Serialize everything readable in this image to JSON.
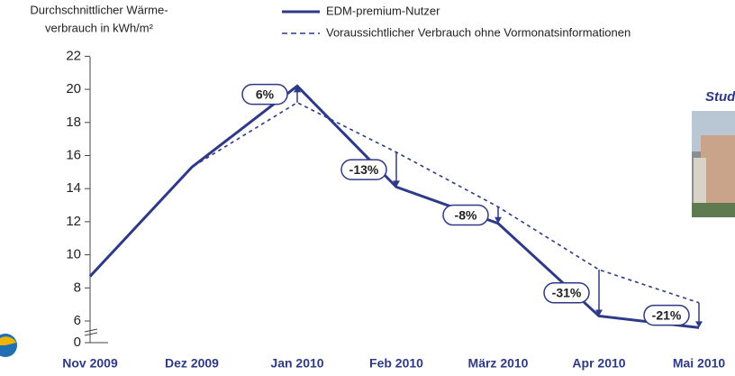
{
  "chart_data": {
    "type": "line",
    "y_axis_label": [
      "Durchschnittlicher Wärme-",
      "verbrauch in kWh/m²"
    ],
    "categories": [
      "Nov 2009",
      "Dez 2009",
      "Jan 2010",
      "Feb 2010",
      "März 2010",
      "Apr 2010",
      "Mai 2010"
    ],
    "series": [
      {
        "name": "EDM-premium-Nutzer",
        "color": "#2e3a87",
        "style": "solid",
        "values": [
          8.7,
          15.3,
          20.2,
          14.1,
          11.9,
          6.3,
          5.6
        ]
      },
      {
        "name": "Voraussichtlicher Verbrauch ohne Vormonatsinformationen",
        "color": "#2e3a87",
        "style": "dashed",
        "values": [
          8.7,
          15.3,
          19.2,
          16.2,
          12.9,
          9.1,
          7.1
        ]
      }
    ],
    "change_labels": [
      null,
      null,
      "6%",
      "-13%",
      "-8%",
      "-31%",
      "-21%"
    ],
    "ylim": [
      0,
      22
    ],
    "axis_break": [
      0,
      5
    ],
    "yticks": [
      0,
      6,
      8,
      10,
      12,
      14,
      16,
      18,
      20,
      22
    ],
    "side_label": "Stud"
  }
}
